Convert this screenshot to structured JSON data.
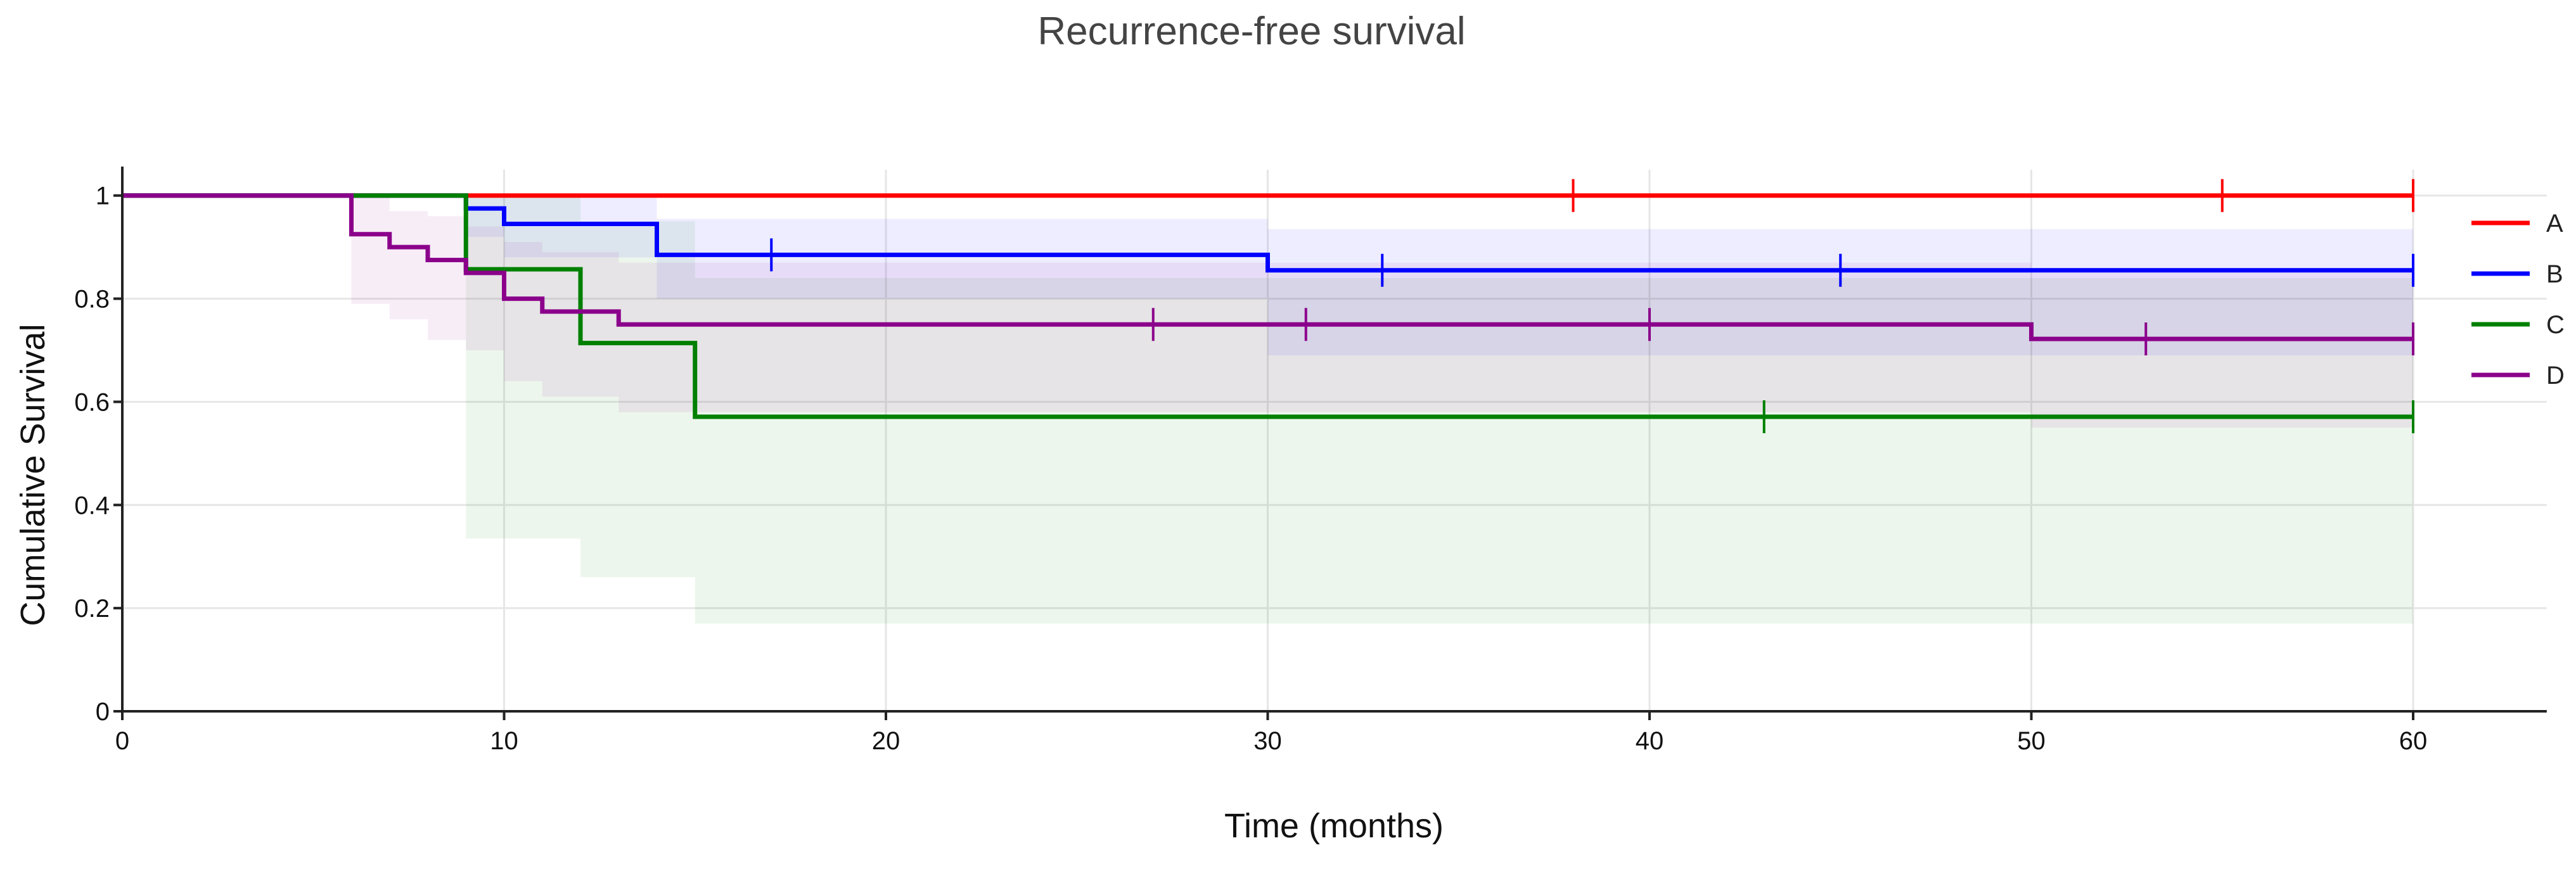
{
  "chart_data": {
    "type": "line",
    "title": "Recurrence-free survival",
    "xlabel": "Time (months)",
    "ylabel": "Cumulative Survival",
    "xlim": [
      0,
      63.5
    ],
    "ylim": [
      0,
      1.05
    ],
    "xticks": [
      0,
      10,
      20,
      30,
      40,
      50,
      60
    ],
    "yticks": [
      0,
      0.2,
      0.4,
      0.6,
      0.8,
      1
    ],
    "xtick_labels": [
      "0",
      "10",
      "20",
      "30",
      "40",
      "50",
      "60"
    ],
    "ytick_labels": [
      "0",
      "0.2",
      "0.4",
      "0.6",
      "0.8",
      "1"
    ],
    "grid": true,
    "legend_position": "right",
    "series": [
      {
        "name": "A",
        "color": "#ff0000",
        "x": [
          0,
          60
        ],
        "y": [
          1,
          1
        ],
        "censored_x": [
          38,
          55,
          60
        ],
        "ci_lower": [],
        "ci_upper": []
      },
      {
        "name": "B",
        "color": "#0000ff",
        "x": [
          0,
          9,
          10,
          14,
          30,
          60
        ],
        "y": [
          1,
          0.975,
          0.945,
          0.885,
          0.855,
          0.855
        ],
        "censored_x": [
          17,
          33,
          45,
          60
        ],
        "ci_lower": [
          1,
          0.92,
          0.88,
          0.8,
          0.69,
          0.69
        ],
        "ci_upper": [
          1,
          1,
          1,
          0.955,
          0.935,
          0.935
        ]
      },
      {
        "name": "C",
        "color": "#008000",
        "x": [
          0,
          9,
          12,
          15,
          60
        ],
        "y": [
          1,
          0.857,
          0.714,
          0.571,
          0.571
        ],
        "censored_x": [
          43,
          60
        ],
        "ci_lower": [
          1,
          0.335,
          0.26,
          0.17,
          0.17
        ],
        "ci_upper": [
          1,
          1,
          0.95,
          0.84,
          0.84
        ]
      },
      {
        "name": "D",
        "color": "#8b008b",
        "x": [
          0,
          6,
          7,
          8,
          9,
          10,
          11,
          13,
          50,
          60
        ],
        "y": [
          1,
          0.925,
          0.9,
          0.875,
          0.85,
          0.8,
          0.775,
          0.75,
          0.722,
          0.722
        ],
        "censored_x": [
          27,
          31,
          40,
          53,
          60
        ],
        "ci_lower": [
          1,
          0.79,
          0.76,
          0.72,
          0.7,
          0.64,
          0.61,
          0.58,
          0.55,
          0.55
        ],
        "ci_upper": [
          1,
          1,
          0.97,
          0.96,
          0.94,
          0.91,
          0.89,
          0.87,
          0.85,
          0.85
        ]
      }
    ]
  }
}
